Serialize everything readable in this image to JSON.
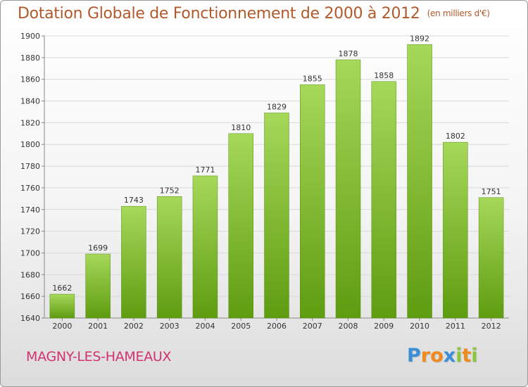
{
  "title": {
    "main": "Dotation Globale de Fonctionnement de 2000 à 2012",
    "unit": "(en milliers d'€)"
  },
  "commune": "MAGNY-LES-HAMEAUX",
  "logo": {
    "text": "Proxiti",
    "letters": [
      {
        "ch": "P",
        "color": "#3a8fd6"
      },
      {
        "ch": "r",
        "color": "#f08a1c"
      },
      {
        "ch": "o",
        "color": "#f08a1c"
      },
      {
        "ch": "x",
        "color": "#3a8fd6"
      },
      {
        "ch": "i",
        "color": "#8cc63f"
      },
      {
        "ch": "t",
        "color": "#f08a1c"
      },
      {
        "ch": "i",
        "color": "#8cc63f"
      }
    ]
  },
  "colors": {
    "bar_top": "#a6d85a",
    "bar_bottom": "#5f9c10",
    "title": "#b05a2c",
    "commune": "#d2336f",
    "grid": "#d9d9d9"
  },
  "chart_data": {
    "type": "bar",
    "categories": [
      "2000",
      "2001",
      "2002",
      "2003",
      "2004",
      "2005",
      "2006",
      "2007",
      "2008",
      "2009",
      "2010",
      "2011",
      "2012"
    ],
    "values": [
      1662,
      1699,
      1743,
      1752,
      1771,
      1810,
      1829,
      1855,
      1878,
      1858,
      1892,
      1802,
      1751
    ],
    "ylim": [
      1640,
      1900
    ],
    "yticks": [
      1640,
      1660,
      1680,
      1700,
      1720,
      1740,
      1760,
      1780,
      1800,
      1820,
      1840,
      1860,
      1880,
      1900
    ],
    "title": "Dotation Globale de Fonctionnement de 2000 à 2012",
    "xlabel": "",
    "ylabel": "",
    "grid": true,
    "data_labels": true
  }
}
